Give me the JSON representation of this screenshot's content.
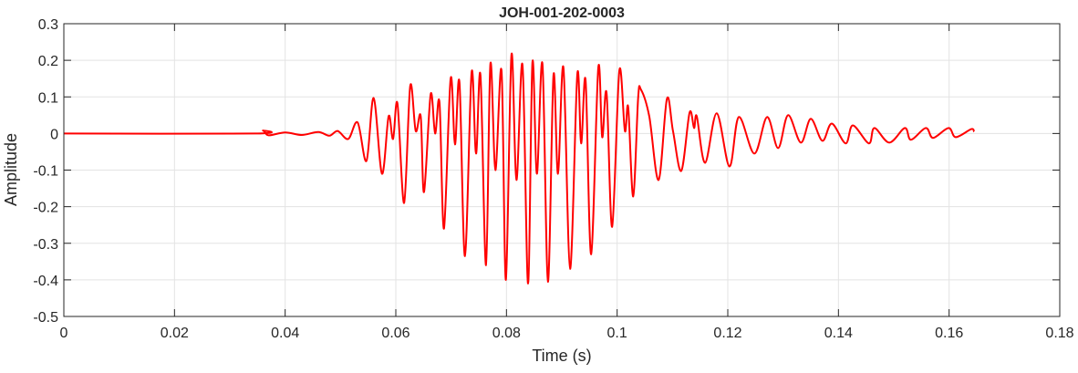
{
  "chart_data": {
    "type": "line",
    "title": "JOH-001-202-0003",
    "xlabel": "Time (s)",
    "ylabel": "Amplitude",
    "xlim": [
      0,
      0.18
    ],
    "ylim": [
      -0.5,
      0.3
    ],
    "xticks": [
      0,
      0.02,
      0.04,
      0.06,
      0.08,
      0.1,
      0.12,
      0.14,
      0.16,
      0.18
    ],
    "xtick_labels": [
      "0",
      "0.02",
      "0.04",
      "0.06",
      "0.08",
      "0.1",
      "0.12",
      "0.14",
      "0.16",
      "0.18"
    ],
    "yticks": [
      0.3,
      0.2,
      0.1,
      0,
      -0.1,
      -0.2,
      -0.3,
      -0.4,
      -0.5
    ],
    "ytick_labels": [
      "0.3",
      "0.2",
      "0.1",
      "0",
      "-0.1",
      "-0.2",
      "-0.3",
      "-0.4",
      "-0.5"
    ],
    "grid": true,
    "legend": "none",
    "series": [
      {
        "name": "signal",
        "color": "#ff0000",
        "points": [
          [
            0,
            0
          ],
          [
            0.0346,
            0
          ],
          [
            0.036,
            0.008
          ],
          [
            0.037,
            -0.005
          ],
          [
            0.04,
            0.003
          ],
          [
            0.043,
            -0.004
          ],
          [
            0.046,
            0.004
          ],
          [
            0.048,
            -0.006
          ],
          [
            0.0495,
            0.007
          ],
          [
            0.0514,
            -0.015
          ],
          [
            0.0531,
            0.03
          ],
          [
            0.0547,
            -0.075
          ],
          [
            0.056,
            0.097
          ],
          [
            0.0575,
            -0.11
          ],
          [
            0.0587,
            0.047
          ],
          [
            0.0595,
            -0.015
          ],
          [
            0.0603,
            0.082
          ],
          [
            0.0615,
            -0.19
          ],
          [
            0.0626,
            0.13
          ],
          [
            0.0636,
            0.007
          ],
          [
            0.0645,
            0.047
          ],
          [
            0.0651,
            -0.16
          ],
          [
            0.0663,
            0.107
          ],
          [
            0.0671,
            0
          ],
          [
            0.0679,
            0.085
          ],
          [
            0.0687,
            -0.26
          ],
          [
            0.0699,
            0.15
          ],
          [
            0.0707,
            -0.03
          ],
          [
            0.0715,
            0.14
          ],
          [
            0.0725,
            -0.335
          ],
          [
            0.0737,
            0.167
          ],
          [
            0.0745,
            -0.055
          ],
          [
            0.0753,
            0.16
          ],
          [
            0.0763,
            -0.36
          ],
          [
            0.0771,
            0.19
          ],
          [
            0.078,
            -0.1
          ],
          [
            0.0791,
            0.172
          ],
          [
            0.0799,
            -0.4
          ],
          [
            0.0809,
            0.215
          ],
          [
            0.0818,
            -0.127
          ],
          [
            0.0829,
            0.187
          ],
          [
            0.0839,
            -0.41
          ],
          [
            0.0847,
            0.195
          ],
          [
            0.0855,
            -0.11
          ],
          [
            0.0865,
            0.19
          ],
          [
            0.0875,
            -0.405
          ],
          [
            0.0885,
            0.16
          ],
          [
            0.0893,
            -0.11
          ],
          [
            0.0903,
            0.18
          ],
          [
            0.0915,
            -0.37
          ],
          [
            0.0928,
            0.162
          ],
          [
            0.0935,
            -0.027
          ],
          [
            0.0943,
            0.145
          ],
          [
            0.0953,
            -0.33
          ],
          [
            0.0966,
            0.18
          ],
          [
            0.0973,
            -0.01
          ],
          [
            0.0981,
            0.11
          ],
          [
            0.0991,
            -0.255
          ],
          [
            0.1004,
            0.172
          ],
          [
            0.1014,
            0.007
          ],
          [
            0.102,
            0.072
          ],
          [
            0.1029,
            -0.172
          ],
          [
            0.1038,
            0.097
          ],
          [
            0.1043,
            0.12
          ],
          [
            0.1058,
            0.047
          ],
          [
            0.1075,
            -0.127
          ],
          [
            0.109,
            0.095
          ],
          [
            0.1101,
            0.007
          ],
          [
            0.1116,
            -0.102
          ],
          [
            0.1131,
            0.057
          ],
          [
            0.1139,
            0.015
          ],
          [
            0.1144,
            0.047
          ],
          [
            0.1159,
            -0.08
          ],
          [
            0.118,
            0.055
          ],
          [
            0.1203,
            -0.09
          ],
          [
            0.122,
            0.045
          ],
          [
            0.1248,
            -0.055
          ],
          [
            0.1271,
            0.045
          ],
          [
            0.1291,
            -0.04
          ],
          [
            0.1309,
            0.05
          ],
          [
            0.1332,
            -0.025
          ],
          [
            0.135,
            0.04
          ],
          [
            0.1371,
            -0.02
          ],
          [
            0.1388,
            0.027
          ],
          [
            0.1413,
            -0.027
          ],
          [
            0.1426,
            0.022
          ],
          [
            0.1455,
            -0.027
          ],
          [
            0.1465,
            0.015
          ],
          [
            0.1492,
            -0.025
          ],
          [
            0.152,
            0.015
          ],
          [
            0.1531,
            -0.017
          ],
          [
            0.1558,
            0.015
          ],
          [
            0.1571,
            -0.012
          ],
          [
            0.1599,
            0.015
          ],
          [
            0.1612,
            -0.01
          ],
          [
            0.164,
            0.012
          ],
          [
            0.1645,
            0.005
          ]
        ]
      }
    ]
  }
}
